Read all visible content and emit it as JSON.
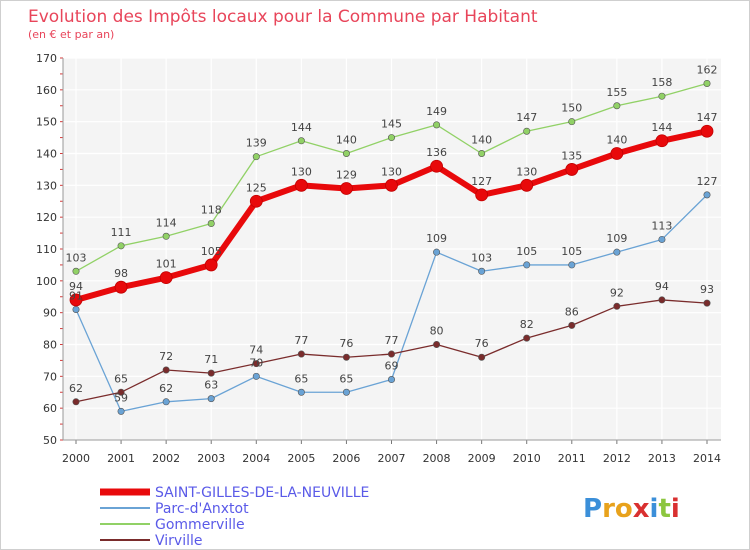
{
  "chart_data": {
    "type": "line",
    "title": "Evolution des Impôts locaux pour la Commune par Habitant",
    "subtitle": "(en € et par an)",
    "xlabel": "",
    "ylabel": "",
    "x": [
      "2000",
      "2001",
      "2002",
      "2003",
      "2004",
      "2005",
      "2006",
      "2007",
      "2008",
      "2009",
      "2010",
      "2011",
      "2012",
      "2013",
      "2014"
    ],
    "y_ticks": [
      "50",
      "60",
      "70",
      "80",
      "90",
      "100",
      "110",
      "120",
      "130",
      "140",
      "150",
      "160",
      "170"
    ],
    "ylim": [
      50,
      170
    ],
    "grid": true,
    "legend_position": "bottom-left",
    "series": [
      {
        "name": "SAINT-GILLES-DE-LA-NEUVILLE",
        "color": "#e8090b",
        "emphasis": true,
        "values": [
          94,
          98,
          101,
          105,
          125,
          130,
          129,
          130,
          136,
          127,
          130,
          135,
          140,
          144,
          147
        ]
      },
      {
        "name": "Parc-d'Anxtot",
        "color": "#6aa3d5",
        "emphasis": false,
        "values": [
          91,
          59,
          62,
          63,
          70,
          65,
          65,
          69,
          109,
          103,
          105,
          105,
          109,
          113,
          127
        ]
      },
      {
        "name": "Gommerville",
        "color": "#91d166",
        "emphasis": false,
        "values": [
          103,
          111,
          114,
          118,
          139,
          144,
          140,
          145,
          149,
          140,
          147,
          150,
          155,
          158,
          162
        ]
      },
      {
        "name": "Virville",
        "color": "#7a2c2c",
        "emphasis": false,
        "values": [
          62,
          65,
          72,
          71,
          74,
          77,
          76,
          77,
          80,
          76,
          82,
          86,
          92,
          94,
          93
        ]
      }
    ]
  },
  "logo": {
    "text": "Proxiti",
    "letters": [
      "P",
      "r",
      "o",
      "x",
      "i",
      "t",
      "i"
    ],
    "colors": [
      "#3b8fd9",
      "#e8a21c",
      "#e8a21c",
      "#d93030",
      "#3b8fd9",
      "#8cc63f",
      "#d93030"
    ]
  }
}
